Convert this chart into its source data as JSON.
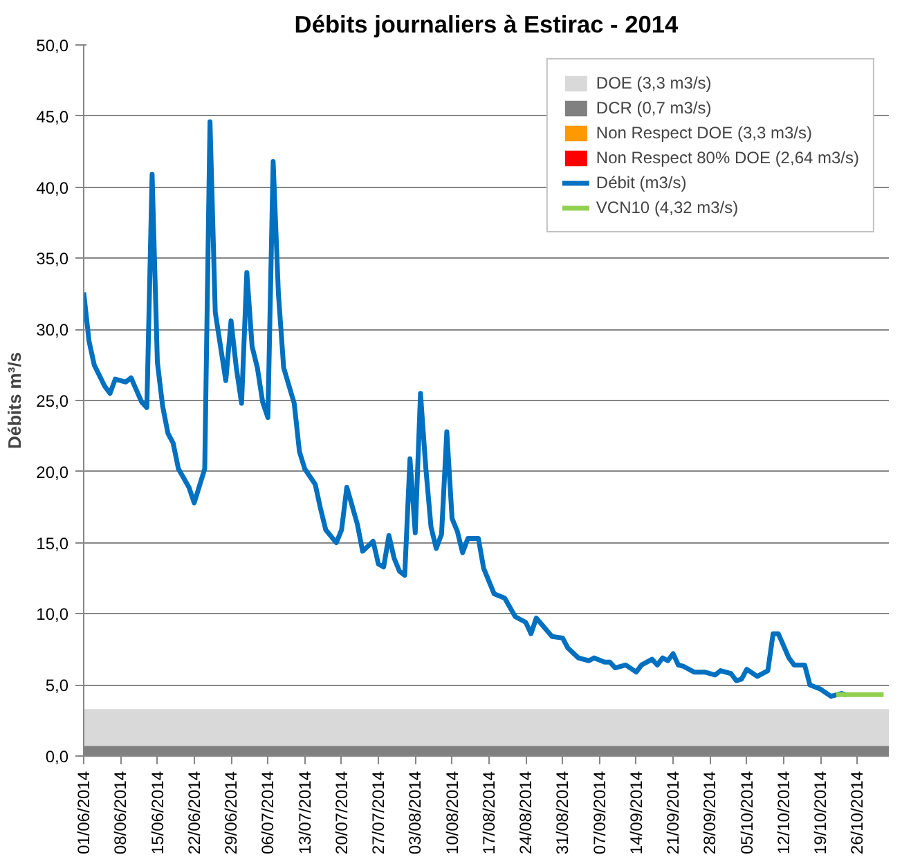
{
  "chart_data": {
    "type": "line",
    "title": "Débits journaliers à Estirac - 2014",
    "ylabel": "Débits m³/s",
    "xlim": [
      "2014-06-01",
      "2014-11-01"
    ],
    "xticks": [
      {
        "value": "2014-06-01",
        "label": "01/06/2014"
      },
      {
        "value": "2014-06-08",
        "label": "08/06/2014"
      },
      {
        "value": "2014-06-15",
        "label": "15/06/2014"
      },
      {
        "value": "2014-06-22",
        "label": "22/06/2014"
      },
      {
        "value": "2014-06-29",
        "label": "29/06/2014"
      },
      {
        "value": "2014-07-06",
        "label": "06/07/2014"
      },
      {
        "value": "2014-07-13",
        "label": "13/07/2014"
      },
      {
        "value": "2014-07-20",
        "label": "20/07/2014"
      },
      {
        "value": "2014-07-27",
        "label": "27/07/2014"
      },
      {
        "value": "2014-08-03",
        "label": "03/08/2014"
      },
      {
        "value": "2014-08-10",
        "label": "10/08/2014"
      },
      {
        "value": "2014-08-17",
        "label": "17/08/2014"
      },
      {
        "value": "2014-08-24",
        "label": "24/08/2014"
      },
      {
        "value": "2014-08-31",
        "label": "31/08/2014"
      },
      {
        "value": "2014-09-07",
        "label": "07/09/2014"
      },
      {
        "value": "2014-09-14",
        "label": "14/09/2014"
      },
      {
        "value": "2014-09-21",
        "label": "21/09/2014"
      },
      {
        "value": "2014-09-28",
        "label": "28/09/2014"
      },
      {
        "value": "2014-10-05",
        "label": "05/10/2014"
      },
      {
        "value": "2014-10-12",
        "label": "12/10/2014"
      },
      {
        "value": "2014-10-19",
        "label": "19/10/2014"
      },
      {
        "value": "2014-10-26",
        "label": "26/10/2014"
      }
    ],
    "ylim": [
      0,
      50
    ],
    "yticks": [
      {
        "value": 0,
        "label": "0,0"
      },
      {
        "value": 5,
        "label": "5,0"
      },
      {
        "value": 10,
        "label": "10,0"
      },
      {
        "value": 15,
        "label": "15,0"
      },
      {
        "value": 20,
        "label": "20,0"
      },
      {
        "value": 25,
        "label": "25,0"
      },
      {
        "value": 30,
        "label": "30,0"
      },
      {
        "value": 35,
        "label": "35,0"
      },
      {
        "value": 40,
        "label": "40,0"
      },
      {
        "value": 45,
        "label": "45,0"
      },
      {
        "value": 50,
        "label": "50,0"
      }
    ],
    "grid": "y",
    "legend": "top right",
    "bands": [
      {
        "axis": "y",
        "from": 0,
        "to": 3.3,
        "label": "DOE (3,3 m3/s)",
        "color": "#d9d9d9"
      },
      {
        "axis": "y",
        "from": 0,
        "to": 0.7,
        "label": "DCR (0,7 m3/s)",
        "color": "#808080"
      }
    ],
    "series": [
      {
        "name": "Non Respect DOE (3,3 m3/s)",
        "type": "area",
        "color": "#ff9900"
      },
      {
        "name": "Non Respect 80% DOE (2,64 m3/s)",
        "type": "area",
        "color": "#ff0000"
      },
      {
        "name": "Débit (m3/s)",
        "color": "#0070c0",
        "x": [
          "2014-06-01",
          "2014-06-02",
          "2014-06-03",
          "2014-06-05",
          "2014-06-06",
          "2014-06-07",
          "2014-06-09",
          "2014-06-10",
          "2014-06-12",
          "2014-06-13",
          "2014-06-14",
          "2014-06-15",
          "2014-06-16",
          "2014-06-17",
          "2014-06-18",
          "2014-06-19",
          "2014-06-21",
          "2014-06-22",
          "2014-06-24",
          "2014-06-25",
          "2014-06-26",
          "2014-06-27",
          "2014-06-28",
          "2014-06-29",
          "2014-06-30",
          "2014-07-01",
          "2014-07-02",
          "2014-07-03",
          "2014-07-04",
          "2014-07-05",
          "2014-07-06",
          "2014-07-07",
          "2014-07-08",
          "2014-07-09",
          "2014-07-11",
          "2014-07-12",
          "2014-07-13",
          "2014-07-15",
          "2014-07-16",
          "2014-07-17",
          "2014-07-19",
          "2014-07-20",
          "2014-07-21",
          "2014-07-23",
          "2014-07-24",
          "2014-07-26",
          "2014-07-27",
          "2014-07-28",
          "2014-07-29",
          "2014-07-30",
          "2014-07-31",
          "2014-08-01",
          "2014-08-02",
          "2014-08-03",
          "2014-08-04",
          "2014-08-05",
          "2014-08-06",
          "2014-08-07",
          "2014-08-08",
          "2014-08-09",
          "2014-08-10",
          "2014-08-11",
          "2014-08-12",
          "2014-08-13",
          "2014-08-15",
          "2014-08-16",
          "2014-08-17",
          "2014-08-18",
          "2014-08-20",
          "2014-08-22",
          "2014-08-24",
          "2014-08-25",
          "2014-08-26",
          "2014-08-29",
          "2014-08-31",
          "2014-09-01",
          "2014-09-03",
          "2014-09-05",
          "2014-09-06",
          "2014-09-08",
          "2014-09-09",
          "2014-09-10",
          "2014-09-12",
          "2014-09-14",
          "2014-09-15",
          "2014-09-17",
          "2014-09-18",
          "2014-09-19",
          "2014-09-20",
          "2014-09-21",
          "2014-09-22",
          "2014-09-23",
          "2014-09-25",
          "2014-09-27",
          "2014-09-29",
          "2014-09-30",
          "2014-10-02",
          "2014-10-03",
          "2014-10-04",
          "2014-10-05",
          "2014-10-07",
          "2014-10-09",
          "2014-10-10",
          "2014-10-11",
          "2014-10-13",
          "2014-10-14",
          "2014-10-16",
          "2014-10-17",
          "2014-10-19",
          "2014-10-21",
          "2014-10-23",
          "2014-10-24"
        ],
        "values": [
          32.6,
          29.2,
          27.5,
          26.0,
          25.5,
          26.5,
          26.3,
          26.6,
          24.9,
          24.5,
          40.9,
          27.7,
          24.6,
          22.7,
          22.0,
          20.2,
          18.9,
          17.8,
          20.2,
          44.6,
          31.2,
          28.8,
          26.4,
          30.6,
          27.3,
          24.8,
          34.0,
          28.8,
          27.3,
          24.9,
          23.8,
          41.8,
          32.5,
          27.3,
          24.8,
          21.4,
          20.2,
          19.1,
          17.4,
          15.9,
          15.0,
          15.9,
          18.9,
          16.3,
          14.4,
          15.1,
          13.5,
          13.3,
          15.5,
          13.9,
          13.0,
          12.7,
          20.9,
          15.7,
          25.5,
          20.3,
          16.1,
          14.6,
          15.6,
          22.8,
          16.7,
          15.8,
          14.3,
          15.3,
          15.3,
          13.2,
          12.3,
          11.4,
          11.1,
          9.8,
          9.4,
          8.6,
          9.7,
          8.4,
          8.3,
          7.6,
          6.9,
          6.7,
          6.9,
          6.6,
          6.6,
          6.2,
          6.4,
          5.9,
          6.4,
          6.8,
          6.4,
          6.9,
          6.7,
          7.2,
          6.4,
          6.3,
          5.9,
          5.9,
          5.7,
          6.0,
          5.8,
          5.3,
          5.4,
          6.1,
          5.6,
          6.0,
          8.6,
          8.6,
          6.9,
          6.4,
          6.4,
          5.0,
          4.7,
          4.2,
          4.4,
          4.3
        ]
      },
      {
        "name": "VCN10 (4,32 m3/s)",
        "color": "#92d050",
        "x": [
          "2014-10-22",
          "2014-10-31"
        ],
        "values": [
          4.32,
          4.32
        ]
      }
    ]
  }
}
